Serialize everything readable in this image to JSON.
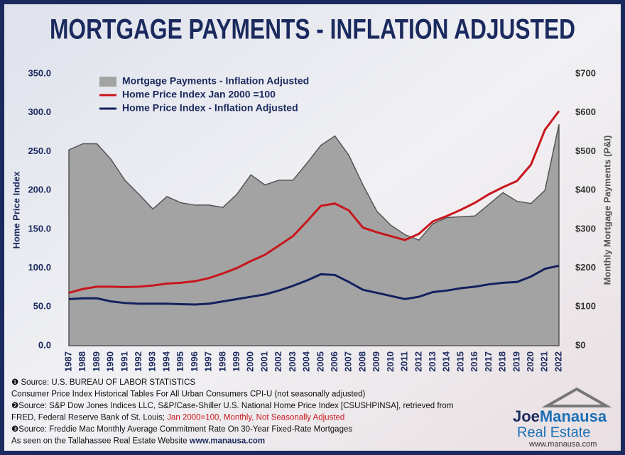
{
  "chart_data": {
    "type": "line",
    "title": "MORTGAGE PAYMENTS - INFLATION ADJUSTED",
    "y_label": "Home Price Index",
    "y2_label": "Monthly Mortgage Payments (P&I)",
    "categories": [
      "1987",
      "1988",
      "1989",
      "1990",
      "1991",
      "1992",
      "1993",
      "1994",
      "1995",
      "1996",
      "1997",
      "1998",
      "1999",
      "2000",
      "2001",
      "2002",
      "2003",
      "2004",
      "2005",
      "2006",
      "2007",
      "2008",
      "2009",
      "2010",
      "2011",
      "2012",
      "2013",
      "2014",
      "2015",
      "2016",
      "2017",
      "2018",
      "2019",
      "2020",
      "2021",
      "2022"
    ],
    "series": [
      {
        "name": "Mortgage Payments - Inflation Adjusted",
        "type": "area",
        "axis": "y2",
        "color": "#a3a3a3",
        "values": [
          504,
          520,
          520,
          480,
          426,
          390,
          352,
          384,
          368,
          362,
          362,
          356,
          390,
          440,
          414,
          426,
          426,
          470,
          516,
          540,
          490,
          414,
          346,
          310,
          286,
          272,
          314,
          330,
          332,
          334,
          364,
          394,
          372,
          366,
          400,
          570
        ]
      },
      {
        "name": "Home Price Index Jan 2000 =100",
        "type": "line",
        "color": "#c8161d",
        "values": [
          68,
          73,
          76,
          76,
          75.5,
          76,
          77.5,
          80,
          81,
          83,
          87,
          93,
          100,
          109,
          117,
          129,
          141,
          160,
          180,
          183,
          174,
          152,
          146,
          141,
          136,
          144,
          160,
          167,
          175,
          184,
          195,
          204,
          212,
          233,
          278,
          302
        ]
      },
      {
        "name": "Home Price Index - Inflation Adjusted",
        "type": "line",
        "color": "#14215e",
        "values": [
          60,
          61,
          61,
          57,
          55,
          54,
          54,
          54,
          53.5,
          53,
          54,
          57,
          60,
          63,
          66,
          71,
          77,
          84,
          92,
          91,
          82,
          72,
          68,
          64,
          60,
          63,
          69,
          71,
          74,
          76,
          79,
          81,
          82,
          89,
          99,
          103
        ]
      }
    ],
    "ylim": [
      0,
      350
    ],
    "yticks": [
      {
        "value": 0,
        "label": "0.0"
      },
      {
        "value": 50,
        "label": "50.0"
      },
      {
        "value": 100,
        "label": "100.0"
      },
      {
        "value": 150,
        "label": "150.0"
      },
      {
        "value": 200,
        "label": "200.0"
      },
      {
        "value": 250,
        "label": "250.0"
      },
      {
        "value": 300,
        "label": "300.0"
      },
      {
        "value": 350,
        "label": "350.0"
      }
    ],
    "y2lim": [
      0,
      700
    ],
    "y2ticks": [
      {
        "value": 0,
        "label": "$0"
      },
      {
        "value": 100,
        "label": "$100"
      },
      {
        "value": 200,
        "label": "$200"
      },
      {
        "value": 300,
        "label": "$300"
      },
      {
        "value": 400,
        "label": "$400"
      },
      {
        "value": 500,
        "label": "$500"
      },
      {
        "value": 600,
        "label": "$600"
      },
      {
        "value": 700,
        "label": "$700"
      }
    ],
    "legend": "upper left",
    "footnotes": [
      [
        "❶ Source: U.S. BUREAU OF LABOR STATISTICS"
      ],
      [
        "Consumer Price Index Historical Tables For All Urban Consumers CPI-U (not seasonally adjusted)"
      ],
      [
        "❷Source: S&P Dow Jones Indices LLC, S&P/Case-Shiller U.S. National Home Price Index [CSUSHPINSA], retrieved from"
      ],
      [
        "FRED, Federal Reserve Bank of St. Louis; ",
        "Jan 2000=100, Monthly, Not Seasonally Adjusted"
      ],
      [
        "❸Source: Freddie Mac Monthly Average Commitment Rate On 30-Year Fixed-Rate Mortgages"
      ],
      [
        "As seen on the Tallahassee Real Estate Website ",
        "www.manausa.com"
      ]
    ],
    "logo": {
      "name_a": "Joe",
      "name_b": "Manausa",
      "sub": "Real Estate",
      "url": "www.manausa.com"
    }
  }
}
